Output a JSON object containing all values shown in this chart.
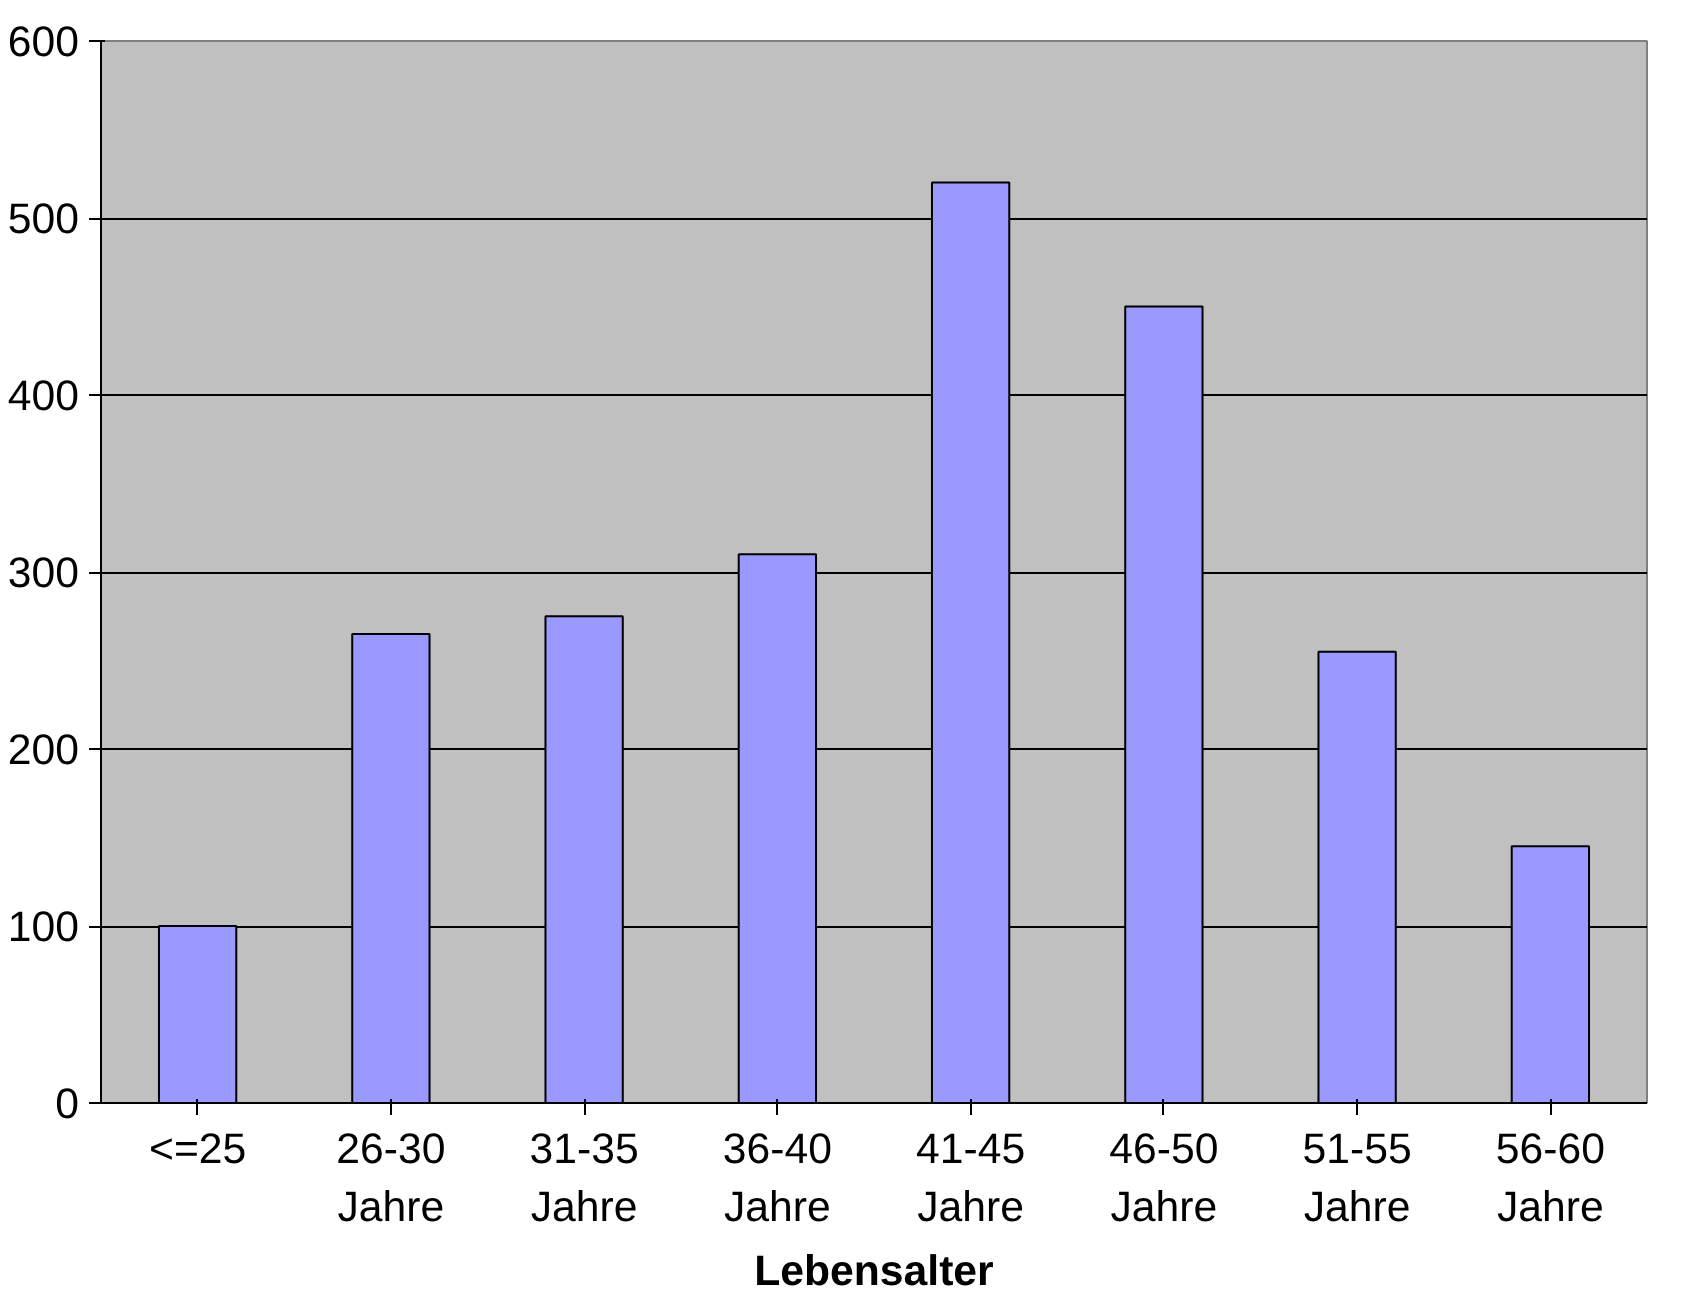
{
  "chart_data": {
    "type": "bar",
    "xlabel": "Lebensalter",
    "categories": [
      "<=25",
      "26-30 Jahre",
      "31-35 Jahre",
      "36-40 Jahre",
      "41-45 Jahre",
      "46-50 Jahre",
      "51-55 Jahre",
      "56-60 Jahre"
    ],
    "values": [
      100,
      265,
      275,
      310,
      520,
      450,
      255,
      145
    ],
    "color": "#9999ff",
    "ylim": [
      0,
      600
    ],
    "yticks": [
      0,
      100,
      200,
      300,
      400,
      500,
      600
    ],
    "grid": "y"
  }
}
